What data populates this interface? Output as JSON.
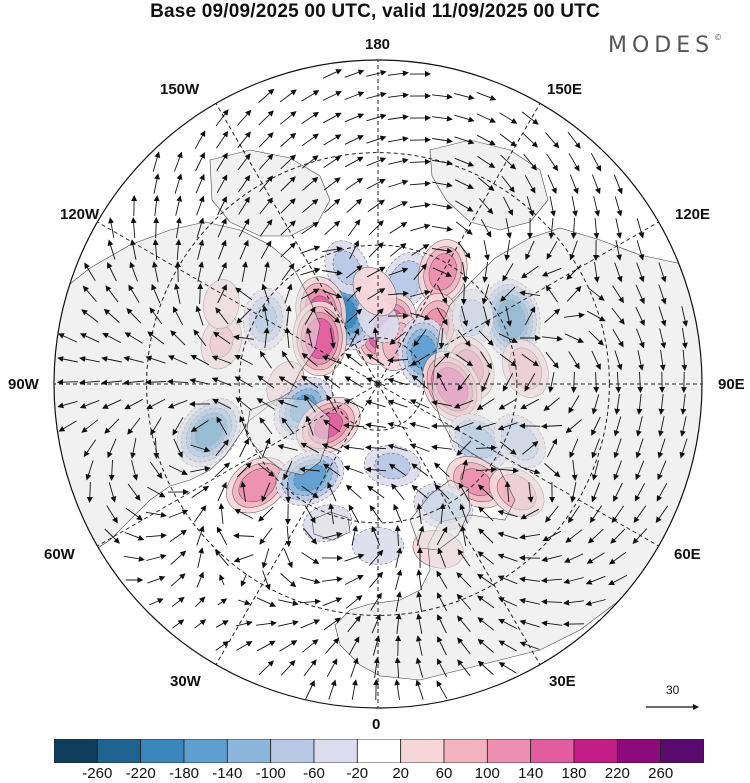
{
  "title": "Base 09/09/2025 00 UTC, valid 11/09/2025 00 UTC",
  "brand": "MODES",
  "brand_mark": "©",
  "longitude_labels": {
    "top": "180",
    "top_left": "150W",
    "top_right": "150E",
    "upper_left": "120W",
    "upper_right": "120E",
    "left": "90W",
    "right": "90E",
    "lower_left": "60W",
    "lower_right": "60E",
    "bottom_left": "30W",
    "bottom_right": "30E",
    "bottom": "0"
  },
  "reference_vector": {
    "label": "30"
  },
  "colorbar": {
    "ticks": [
      "-260",
      "-220",
      "-180",
      "-140",
      "-100",
      "-60",
      "-20",
      "20",
      "60",
      "100",
      "140",
      "180",
      "220",
      "260"
    ],
    "colors": [
      "#0f3d5c",
      "#1f6391",
      "#3a87bd",
      "#5f9fd0",
      "#8db6dd",
      "#b7c8e4",
      "#dcdcec",
      "#ffffff",
      "#f7d6da",
      "#f2b2c0",
      "#ec8fb0",
      "#e25d9f",
      "#c31d86",
      "#8c0a7c",
      "#5a0a6e"
    ]
  },
  "anomalies": [
    {
      "lon": 165,
      "lat": 67,
      "v": -90
    },
    {
      "lon": 150,
      "lat": 62,
      "v": 120
    },
    {
      "lon": 135,
      "lat": 72,
      "v": 110
    },
    {
      "lon": 116,
      "lat": 58,
      "v": -200
    },
    {
      "lon": 125,
      "lat": 65,
      "v": -70
    },
    {
      "lon": 140,
      "lat": 78,
      "v": 60
    },
    {
      "lon": 172,
      "lat": 78,
      "v": 180
    },
    {
      "lon": 155,
      "lat": 80,
      "v": 80
    },
    {
      "lon": 125,
      "lat": 78,
      "v": -150
    },
    {
      "lon": 100,
      "lat": 70,
      "v": 120
    },
    {
      "lon": 88,
      "lat": 74,
      "v": 170
    },
    {
      "lon": 96,
      "lat": 58,
      "v": 90
    },
    {
      "lon": 60,
      "lat": 65,
      "v": -120
    },
    {
      "lon": 68,
      "lat": 57,
      "v": -90
    },
    {
      "lon": 45,
      "lat": 60,
      "v": 110
    },
    {
      "lon": 52,
      "lat": 52,
      "v": 90
    },
    {
      "lon": 28,
      "lat": 60,
      "v": -90
    },
    {
      "lon": 20,
      "lat": 52,
      "v": 40
    },
    {
      "lon": -155,
      "lat": 73,
      "v": -180
    },
    {
      "lon": -165,
      "lat": 64,
      "v": -70
    },
    {
      "lon": -180,
      "lat": 76,
      "v": -40
    },
    {
      "lon": -178,
      "lat": 70,
      "v": 50
    },
    {
      "lon": -142,
      "lat": 70,
      "v": 140
    },
    {
      "lon": -128,
      "lat": 74,
      "v": 170
    },
    {
      "lon": -120,
      "lat": 62,
      "v": -100
    },
    {
      "lon": -105,
      "lat": 55,
      "v": 60
    },
    {
      "lon": -117,
      "lat": 52,
      "v": 30
    },
    {
      "lon": -90,
      "lat": 70,
      "v": 20
    },
    {
      "lon": -72,
      "lat": 73,
      "v": -140
    },
    {
      "lon": -74,
      "lat": 52,
      "v": -180
    },
    {
      "lon": -50,
      "lat": 76,
      "v": 140
    },
    {
      "lon": -50,
      "lat": 56,
      "v": 130
    },
    {
      "lon": -36,
      "lat": 65,
      "v": -150
    },
    {
      "lon": -20,
      "lat": 58,
      "v": -30
    },
    {
      "lon": 0,
      "lat": 55,
      "v": -40
    },
    {
      "lon": 10,
      "lat": 72,
      "v": -70
    }
  ]
}
